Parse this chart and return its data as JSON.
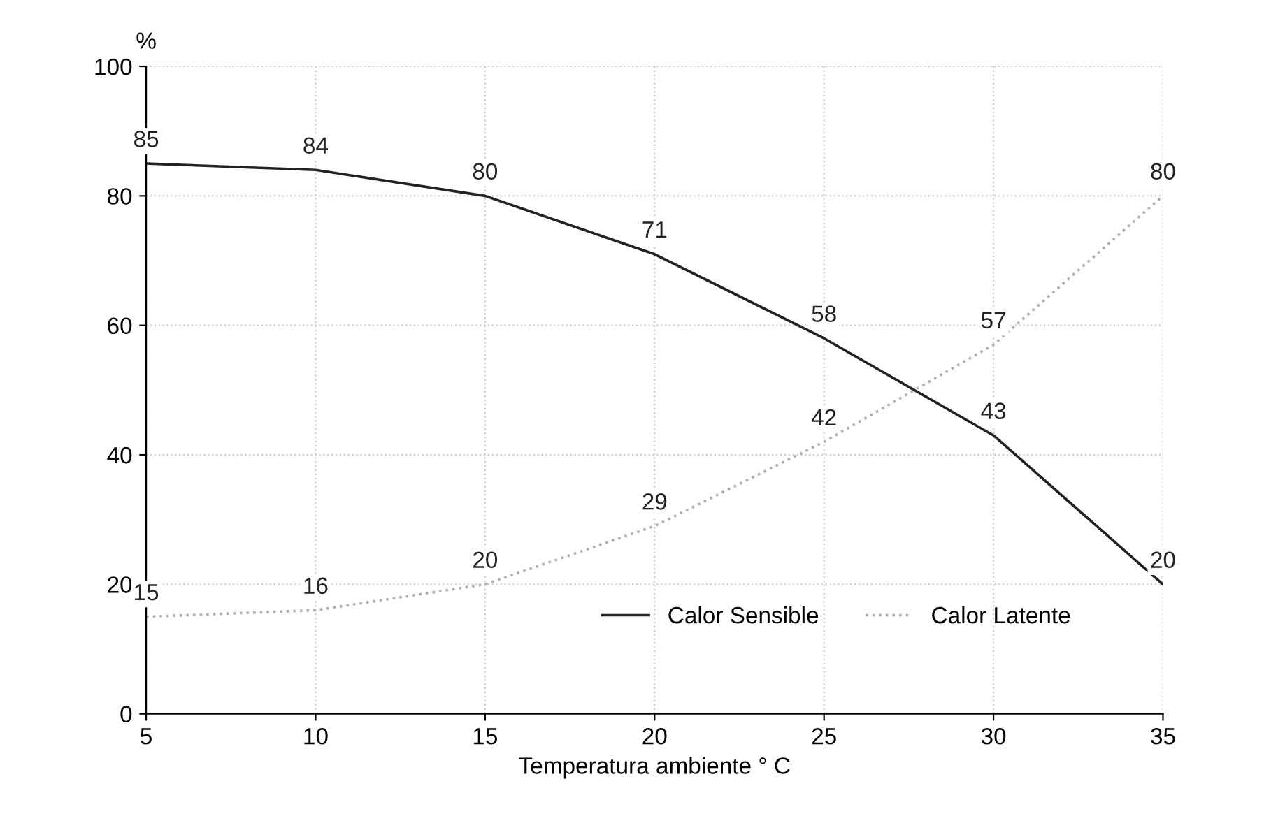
{
  "chart_data": {
    "type": "line",
    "xlabel": "Temperatura ambiente ° C",
    "ylabel": "%",
    "x": [
      5,
      10,
      15,
      20,
      25,
      30,
      35
    ],
    "series": [
      {
        "name": "Calor Sensible",
        "color": "#222222",
        "values": [
          85,
          84,
          80,
          71,
          58,
          43,
          20
        ],
        "line_style": "solid"
      },
      {
        "name": "Calor Latente",
        "color": "#b0b0b0",
        "values": [
          15,
          16,
          20,
          29,
          42,
          57,
          80
        ],
        "line_style": "dotted"
      }
    ],
    "xlim": [
      5,
      35
    ],
    "ylim": [
      0,
      100
    ],
    "xticks": [
      5,
      10,
      15,
      20,
      25,
      30,
      35
    ],
    "yticks": [
      0,
      20,
      40,
      60,
      80,
      100
    ],
    "data_labels": true,
    "grid": true,
    "legend": "bottom right",
    "marker": "none"
  }
}
